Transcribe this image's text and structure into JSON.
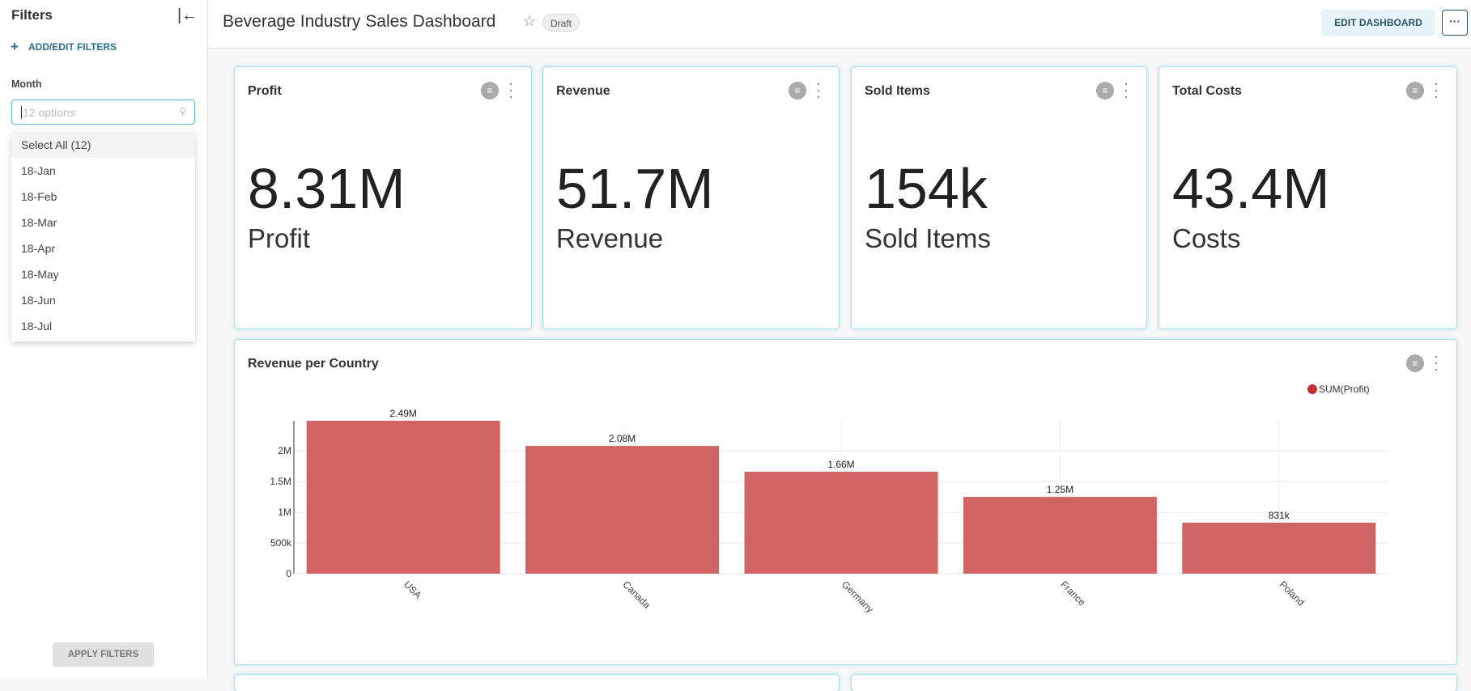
{
  "sidebar": {
    "title": "Filters",
    "add_filters_label": "ADD/EDIT FILTERS",
    "filter_label": "Month",
    "search_placeholder": "12 options",
    "options": [
      "Select All (12)",
      "18-Jan",
      "18-Feb",
      "18-Mar",
      "18-Apr",
      "18-May",
      "18-Jun",
      "18-Jul"
    ],
    "apply_label": "APPLY FILTERS"
  },
  "header": {
    "title": "Beverage Industry Sales Dashboard",
    "badge": "Draft",
    "edit_label": "EDIT DASHBOARD",
    "more_label": "···"
  },
  "kpis": [
    {
      "title": "Profit",
      "value": "8.31M",
      "label": "Profit"
    },
    {
      "title": "Revenue",
      "value": "51.7M",
      "label": "Revenue"
    },
    {
      "title": "Sold Items",
      "value": "154k",
      "label": "Sold Items"
    },
    {
      "title": "Total Costs",
      "value": "43.4M",
      "label": "Costs"
    }
  ],
  "chart_card": {
    "title": "Revenue per Country"
  },
  "chart_data": {
    "type": "bar",
    "categories": [
      "USA",
      "Canada",
      "Germany",
      "France",
      "Poland"
    ],
    "series": [
      {
        "name": "SUM(Profit)",
        "values": [
          2490000,
          2080000,
          1660000,
          1250000,
          831000
        ],
        "labels": [
          "2.49M",
          "2.08M",
          "1.66M",
          "1.25M",
          "831k"
        ],
        "color": "#d06462"
      }
    ],
    "legend_color": "#c62f2f",
    "yticks": [
      0,
      500000,
      1000000,
      1500000,
      2000000
    ],
    "ytick_labels": [
      "0",
      "500k",
      "1M",
      "1.5M",
      "2M"
    ],
    "ylim": [
      0,
      2490000
    ],
    "grid": true,
    "legend_position": "top-right"
  }
}
